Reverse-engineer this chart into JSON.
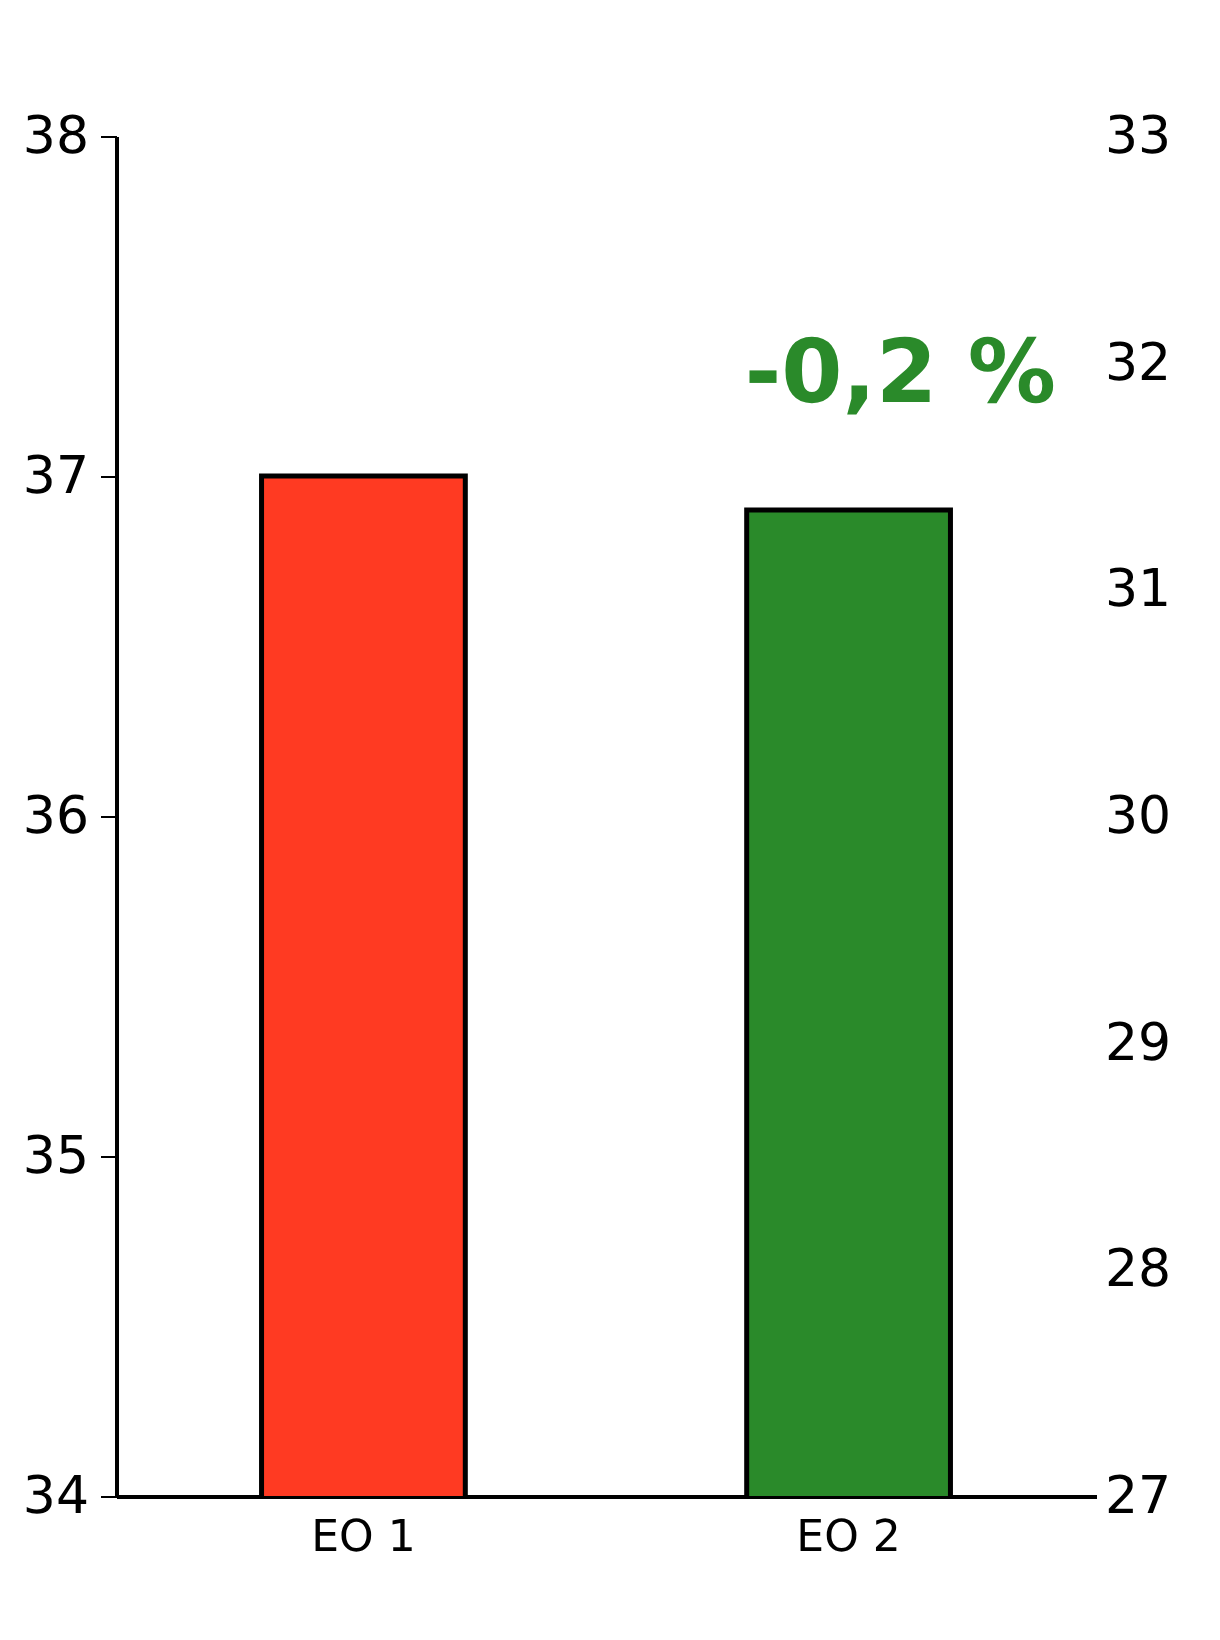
{
  "chart_data": {
    "type": "bar",
    "categories": [
      "EO 1",
      "EO 2"
    ],
    "values": [
      37.0,
      36.9
    ],
    "colors": [
      "#ff3a22",
      "#2a8a2a"
    ],
    "ylim": [
      34,
      38
    ],
    "yticks": [
      34,
      35,
      36,
      37,
      38
    ],
    "y2lim": [
      27,
      33
    ],
    "y2ticks": [
      27,
      28,
      29,
      30,
      31,
      32,
      33
    ],
    "annotations": [
      "-0,2 %"
    ]
  }
}
